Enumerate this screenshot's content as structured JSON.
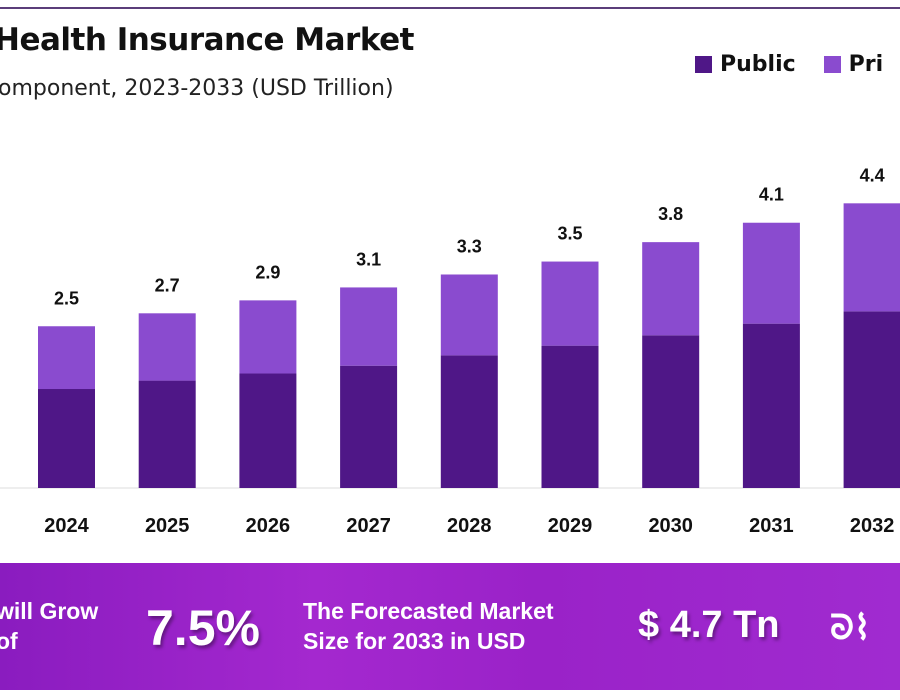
{
  "colors": {
    "public": "#4f1787",
    "private": "#8a4bcf",
    "banner": "#a026cc"
  },
  "chart_data": {
    "type": "bar",
    "stacked": true,
    "title": "Health Insurance Market",
    "subtitle": "omponent, 2023-2033 (USD Trillion)",
    "categories": [
      "2024",
      "2025",
      "2026",
      "2027",
      "2028",
      "2029",
      "2030",
      "2031",
      "2032"
    ],
    "totals_labels": [
      "2.5",
      "2.7",
      "2.9",
      "3.1",
      "3.3",
      "3.5",
      "3.8",
      "4.1",
      "4.4"
    ],
    "series": [
      {
        "name": "Public",
        "values": [
          1.53,
          1.66,
          1.77,
          1.89,
          2.05,
          2.2,
          2.36,
          2.54,
          2.73
        ]
      },
      {
        "name": "Pri",
        "values": [
          0.97,
          1.04,
          1.13,
          1.21,
          1.25,
          1.3,
          1.44,
          1.56,
          1.67
        ]
      }
    ],
    "ylim": [
      0,
      4.6
    ],
    "grid": false,
    "legend": "top-right"
  },
  "banner": {
    "growth_text_1": "will Grow",
    "growth_text_2": "of",
    "cagr": "7.5%",
    "forecast_text_1": "The Forecasted Market",
    "forecast_text_2": "Size for 2033 in USD",
    "forecast_value": "$ 4.7 Tn"
  }
}
